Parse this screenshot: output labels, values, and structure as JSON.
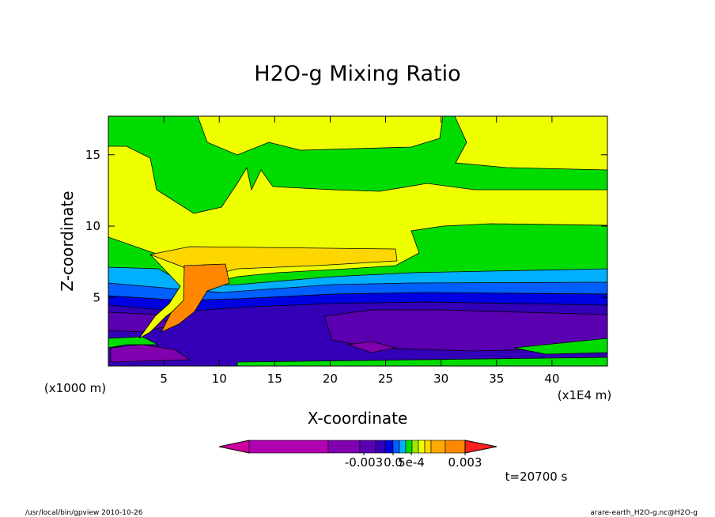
{
  "chart_data": {
    "type": "contour",
    "title": "H2O-g Mixing Ratio",
    "x_label": "X-coordinate",
    "y_label": "Z-coordinate",
    "x_unit": "(x1E4 m)",
    "y_unit": "(x1000 m)",
    "xlim": [
      0,
      45
    ],
    "xticks": [
      5,
      10,
      15,
      20,
      25,
      30,
      35,
      40
    ],
    "ylim": [
      0.2,
      17.7
    ],
    "yticks": [
      5,
      10,
      15
    ],
    "colorbar": {
      "colors": [
        "#d000a0",
        "#b000b0",
        "#8000b0",
        "#5a00b0",
        "#3300b8",
        "#0000e0",
        "#0060ff",
        "#00b0ff",
        "#00dc00",
        "#a0e600",
        "#eeff00",
        "#ffd700",
        "#ffaa00",
        "#ff8800",
        "#ff2020"
      ],
      "ticks": [
        -0.003,
        {
          "value": 0,
          "label": "0.0"
        },
        {
          "value": 0.0005,
          "label": "5e-4"
        },
        0.003
      ]
    },
    "time_label": "t=20700 s",
    "footer_left": "/usr/local/bin/gpview  2010-10-26",
    "footer_right": "arare-earth_H2O-g.nc@H2O-g"
  }
}
